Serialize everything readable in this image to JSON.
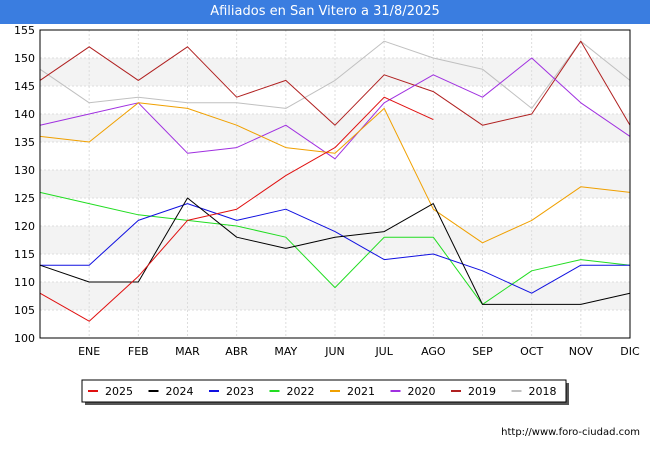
{
  "chart_data": {
    "type": "line",
    "title": "Afiliados en San Vitero a 31/8/2025",
    "categories": [
      "",
      "ENE",
      "FEB",
      "MAR",
      "ABR",
      "MAY",
      "JUN",
      "JUL",
      "AGO",
      "SEP",
      "OCT",
      "NOV",
      "DIC"
    ],
    "ylim": [
      100,
      155
    ],
    "yticks": [
      100,
      105,
      110,
      115,
      120,
      125,
      130,
      135,
      140,
      145,
      150,
      155
    ],
    "grid": true,
    "legend_position": "bottom",
    "series": [
      {
        "name": "2025",
        "color": "#e01010",
        "values": [
          108,
          103,
          111,
          121,
          123,
          129,
          134,
          143,
          139,
          null,
          null,
          null,
          null
        ]
      },
      {
        "name": "2024",
        "color": "#000000",
        "values": [
          113,
          110,
          110,
          125,
          118,
          116,
          118,
          119,
          124,
          106,
          106,
          106,
          108
        ]
      },
      {
        "name": "2023",
        "color": "#1010e0",
        "values": [
          113,
          113,
          121,
          124,
          121,
          123,
          119,
          114,
          115,
          112,
          108,
          113,
          113
        ]
      },
      {
        "name": "2022",
        "color": "#22dd22",
        "values": [
          126,
          124,
          122,
          121,
          120,
          118,
          109,
          118,
          118,
          106,
          112,
          114,
          113
        ]
      },
      {
        "name": "2021",
        "color": "#f0a000",
        "values": [
          136,
          135,
          142,
          141,
          138,
          134,
          133,
          141,
          123,
          117,
          121,
          127,
          126
        ]
      },
      {
        "name": "2020",
        "color": "#a030e0",
        "values": [
          138,
          140,
          142,
          133,
          134,
          138,
          132,
          142,
          147,
          143,
          150,
          142,
          136
        ]
      },
      {
        "name": "2019",
        "color": "#b02020",
        "values": [
          146,
          152,
          146,
          152,
          143,
          146,
          138,
          147,
          144,
          138,
          140,
          153,
          138
        ]
      },
      {
        "name": "2018",
        "color": "#c0c0c0",
        "values": [
          148,
          142,
          143,
          142,
          142,
          141,
          146,
          153,
          150,
          148,
          141,
          153,
          146
        ]
      }
    ]
  },
  "footer": {
    "source": "http://www.foro-ciudad.com"
  }
}
